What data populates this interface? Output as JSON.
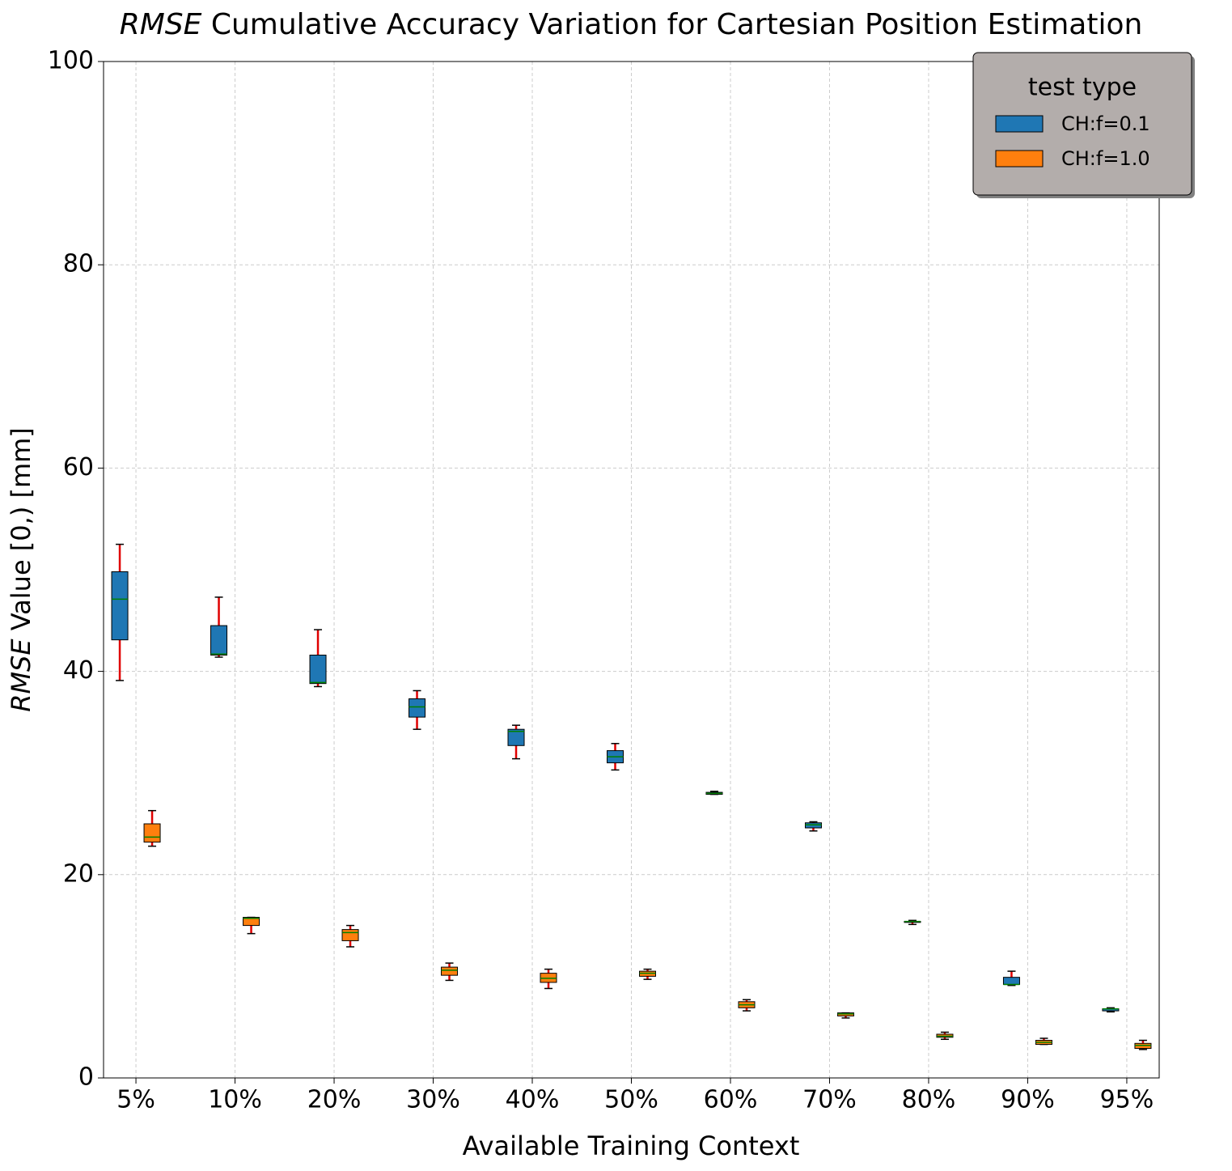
{
  "chart_data": {
    "type": "box",
    "title_emphasis": "RMSE",
    "title": "Cumulative Accuracy Variation for Cartesian Position Estimation",
    "x_label": "Available Training Context",
    "y_label_emphasis": "RMSE",
    "y_label": "Value [0,) [mm]",
    "categories": [
      "5%",
      "10%",
      "20%",
      "30%",
      "40%",
      "50%",
      "60%",
      "70%",
      "80%",
      "90%",
      "95%"
    ],
    "ylim": [
      0,
      100
    ],
    "yticks": [
      0,
      20,
      40,
      60,
      80,
      100
    ],
    "grid": true,
    "legend_title": "test type",
    "legend_position": "upper right",
    "series": [
      {
        "name": "CH:f=0.1",
        "color": "#1f77b4",
        "whislo": [
          39.1,
          41.4,
          38.5,
          34.3,
          31.4,
          30.3,
          27.9,
          24.3,
          15.1,
          9.1,
          6.5
        ],
        "q1": [
          43.1,
          41.6,
          38.8,
          35.5,
          32.7,
          31.0,
          27.9,
          24.6,
          15.3,
          9.2,
          6.6
        ],
        "med": [
          47.1,
          41.7,
          38.9,
          36.5,
          34.1,
          31.6,
          28.0,
          24.9,
          15.4,
          9.2,
          6.8
        ],
        "q3": [
          49.8,
          44.5,
          41.6,
          37.3,
          34.3,
          32.2,
          28.1,
          25.1,
          15.4,
          9.9,
          6.8
        ],
        "whishi": [
          52.5,
          47.3,
          44.1,
          38.1,
          34.7,
          32.9,
          28.2,
          25.2,
          15.5,
          10.5,
          6.9
        ]
      },
      {
        "name": "CH:f=1.0",
        "color": "#ff7f0e",
        "whislo": [
          22.8,
          14.2,
          12.9,
          9.6,
          8.8,
          9.7,
          6.6,
          5.9,
          3.8,
          3.3,
          2.8
        ],
        "q1": [
          23.2,
          15.0,
          13.5,
          10.1,
          9.4,
          10.0,
          6.9,
          6.1,
          4.0,
          3.3,
          2.9
        ],
        "med": [
          23.7,
          15.7,
          14.3,
          10.6,
          9.8,
          10.3,
          7.2,
          6.3,
          4.1,
          3.5,
          3.2
        ],
        "q3": [
          25.0,
          15.8,
          14.6,
          10.9,
          10.3,
          10.5,
          7.5,
          6.4,
          4.3,
          3.7,
          3.4
        ],
        "whishi": [
          26.3,
          15.8,
          15.0,
          11.3,
          10.7,
          10.7,
          7.7,
          6.4,
          4.5,
          3.9,
          3.7
        ]
      }
    ]
  }
}
